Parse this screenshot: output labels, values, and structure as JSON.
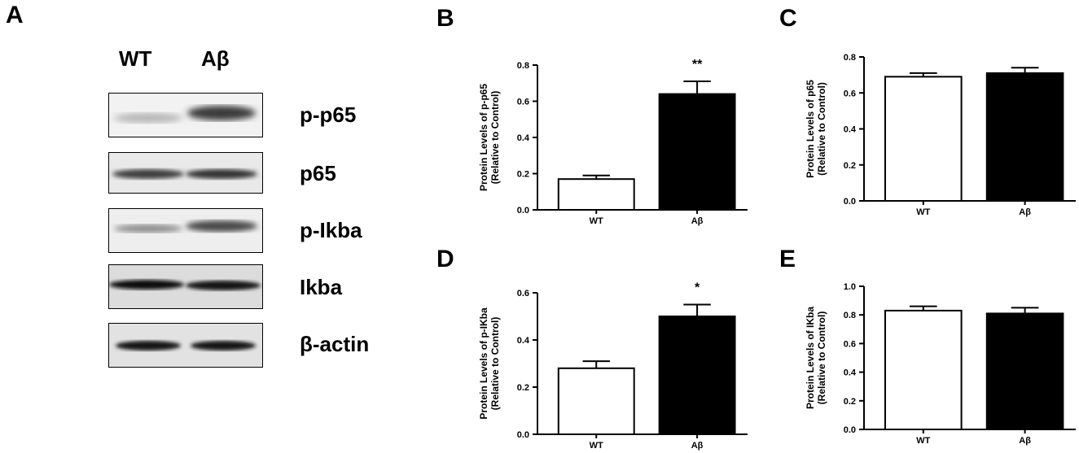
{
  "panel_a": {
    "letter": "A",
    "lanes": [
      "WT",
      "Aβ"
    ],
    "bands": [
      "p-p65",
      "p65",
      "p-Ikba",
      "Ikba",
      "β-actin"
    ]
  },
  "chart_data": [
    {
      "panel": "B",
      "type": "bar",
      "categories": [
        "WT",
        "Aβ"
      ],
      "values": [
        0.17,
        0.64
      ],
      "errors": [
        0.02,
        0.07
      ],
      "bar_colors": [
        "#ffffff",
        "#000000"
      ],
      "significance": [
        "",
        "**"
      ],
      "ylabel_line1": "Protein Levels of p-p65",
      "ylabel_line2": "(Relative to Control)",
      "ylim": [
        0,
        0.8
      ],
      "yticks": [
        "0.0",
        "0.2",
        "0.4",
        "0.6",
        "0.8"
      ]
    },
    {
      "panel": "C",
      "type": "bar",
      "categories": [
        "WT",
        "Aβ"
      ],
      "values": [
        0.69,
        0.71
      ],
      "errors": [
        0.02,
        0.03
      ],
      "bar_colors": [
        "#ffffff",
        "#000000"
      ],
      "significance": [
        "",
        ""
      ],
      "ylabel_line1": "Protein Levels of p65",
      "ylabel_line2": "(Relative to Control)",
      "ylim": [
        0,
        0.8
      ],
      "yticks": [
        "0.0",
        "0.2",
        "0.4",
        "0.6",
        "0.8"
      ]
    },
    {
      "panel": "D",
      "type": "bar",
      "categories": [
        "WT",
        "Aβ"
      ],
      "values": [
        0.28,
        0.5
      ],
      "errors": [
        0.03,
        0.05
      ],
      "bar_colors": [
        "#ffffff",
        "#000000"
      ],
      "significance": [
        "",
        "*"
      ],
      "ylabel_line1": "Protein Levels of p-IKba",
      "ylabel_line2": "(Relative to Control)",
      "ylim": [
        0,
        0.6
      ],
      "yticks": [
        "0.0",
        "0.2",
        "0.4",
        "0.6"
      ]
    },
    {
      "panel": "E",
      "type": "bar",
      "categories": [
        "WT",
        "Aβ"
      ],
      "values": [
        0.83,
        0.81
      ],
      "errors": [
        0.03,
        0.04
      ],
      "bar_colors": [
        "#ffffff",
        "#000000"
      ],
      "significance": [
        "",
        ""
      ],
      "ylabel_line1": "Protein Levels of IKba",
      "ylabel_line2": "(Relative to Control)",
      "ylim": [
        0,
        1.0
      ],
      "yticks": [
        "0.0",
        "0.2",
        "0.4",
        "0.6",
        "0.8",
        "1.0"
      ]
    }
  ]
}
